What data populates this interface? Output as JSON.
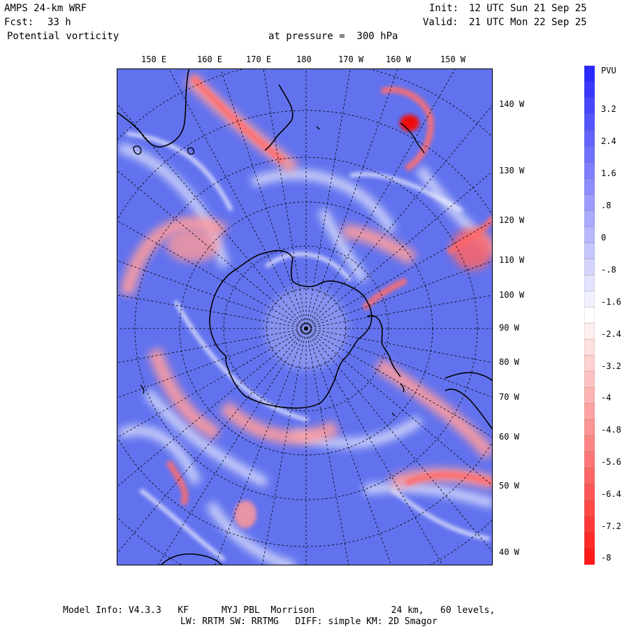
{
  "header": {
    "model": "AMPS 24-km WRF",
    "init_label": "Init:",
    "init_time": "12 UTC Sun 21 Sep 25",
    "fcst_label": "Fcst:",
    "fcst_value": "33 h",
    "valid_label": "Valid:",
    "valid_time": "21 UTC Mon 22 Sep 25",
    "field": "Potential vorticity",
    "level": "at pressure =  300 hPa"
  },
  "top_ticks": [
    "150 E",
    "160 E",
    "170 E",
    "180",
    "170 W",
    "160 W",
    "150 W"
  ],
  "right_ticks": [
    "140 W",
    "130 W",
    "120 W",
    "110 W",
    "100 W",
    "90 W",
    "80 W",
    "70 W",
    "60 W",
    "50 W",
    "40 W"
  ],
  "colorbar": {
    "units": "PVU",
    "labels": [
      "3.2",
      "2.4",
      "1.6",
      ".8",
      "0",
      "-.8",
      "-1.6",
      "-2.4",
      "-3.2",
      "-4",
      "-4.8",
      "-5.6",
      "-6.4",
      "-7.2",
      "-8"
    ],
    "range": [
      -8,
      4
    ],
    "colors": {
      "positive": "#2a2aff",
      "neutral": "#ffffff",
      "negative": "#ff1a1a"
    }
  },
  "footer": {
    "line1": "Model Info: V4.3.3   KF      MYJ PBL  Morrison              24 km,   60 levels,",
    "line2": "LW: RRTM SW: RRTMG   DIFF: simple KM: 2D Smagor"
  },
  "colors": {
    "background": "#6272ee",
    "land_outline": "#000000",
    "grid": "#000000"
  }
}
